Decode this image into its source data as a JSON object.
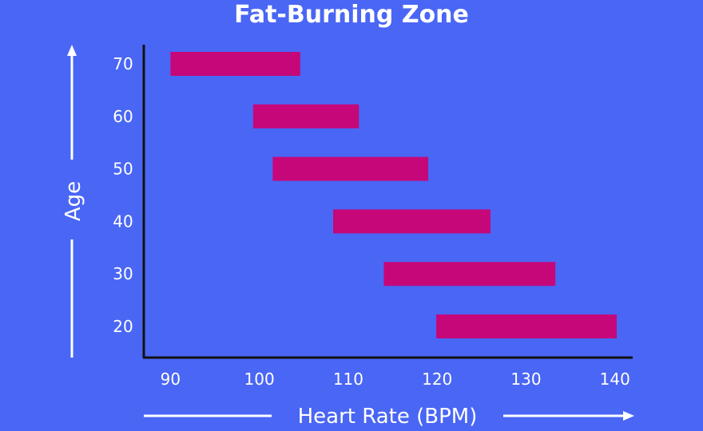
{
  "chart_data": {
    "type": "bar",
    "orientation": "horizontal-range",
    "title": "Fat-Burning Zone",
    "xlabel": "Heart Rate (BPM)",
    "ylabel": "Age",
    "xlim": [
      87,
      142
    ],
    "x_ticks": [
      90,
      100,
      110,
      120,
      130,
      140
    ],
    "categories": [
      "70",
      "60",
      "50",
      "40",
      "30",
      "20"
    ],
    "series": [
      {
        "ranges": [
          [
            90,
            104.6
          ],
          [
            99.3,
            111.2
          ],
          [
            101.5,
            119
          ],
          [
            108.3,
            126
          ],
          [
            114,
            133.3
          ],
          [
            119.9,
            140.2
          ]
        ]
      }
    ],
    "colors": {
      "background": "#4a66f5",
      "bar": "#c6077a",
      "axis": "#111111",
      "text": "#ffffff"
    },
    "grid": false
  }
}
